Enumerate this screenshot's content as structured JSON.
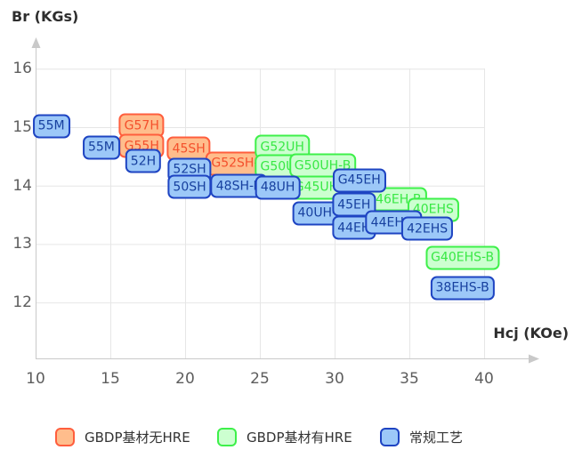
{
  "titles": {
    "y": "Br (KGs)",
    "x": "Hcj (KOe)"
  },
  "axes": {
    "x_ticks": [
      "10",
      "15",
      "20",
      "25",
      "30",
      "35",
      "40"
    ],
    "y_ticks": [
      "16",
      "15",
      "14",
      "13",
      "12"
    ]
  },
  "legend": [
    {
      "label": "GBDP基材无HRE",
      "category": "gbdp_no_hre"
    },
    {
      "label": "GBDP基材有HRE",
      "category": "gbdp_with_hre"
    },
    {
      "label": "常规工艺",
      "category": "conventional"
    }
  ],
  "colors": {
    "gbdp_no_hre": {
      "fill": "#ffbd8c",
      "border": "#ff5e3d",
      "text": "#f4502c"
    },
    "gbdp_with_hre": {
      "fill": "#ccffd0",
      "border": "#3ef04a",
      "text": "#39e845"
    },
    "conventional": {
      "fill": "#9cc8f8",
      "border": "#1e44c2",
      "text": "#17409f"
    }
  },
  "ui_colors": {
    "grid": "#e6e6e6",
    "axis": "#c9c9c9",
    "tick_text": "#5d5d5d",
    "title_text": "#2e2e2e",
    "legend_text": "#333333",
    "background": "#ffffff"
  },
  "chart_data": {
    "type": "scatter",
    "title": "",
    "xlabel": "Hcj (KOe)",
    "ylabel": "Br (KGs)",
    "xlim": [
      10,
      40
    ],
    "ylim": [
      12,
      16
    ],
    "x_tick_values": [
      10,
      15,
      20,
      25,
      30,
      35,
      40
    ],
    "y_tick_values": [
      16,
      15,
      14,
      13,
      12
    ],
    "grid": true,
    "legend_position": "bottom",
    "point_style": "rounded-label-box",
    "series": [
      {
        "name": "GBDP基材无HRE",
        "category": "gbdp_no_hre",
        "points": [
          {
            "label": "G57H",
            "hcj": 17.1,
            "br": 15.03
          },
          {
            "label": "G55H",
            "hcj": 17.1,
            "br": 14.68
          },
          {
            "label": "45SH",
            "hcj": 20.25,
            "br": 14.63
          },
          {
            "label": "G52SH-B",
            "hcj": 23.6,
            "br": 14.38
          }
        ]
      },
      {
        "name": "GBDP基材有HRE",
        "category": "gbdp_with_hre",
        "points": [
          {
            "label": "G52UH",
            "hcj": 26.5,
            "br": 14.66
          },
          {
            "label": "G50UH",
            "hcj": 26.5,
            "br": 14.33
          },
          {
            "label": "G50UH-B",
            "hcj": 29.2,
            "br": 14.34
          },
          {
            "label": "G45UH-B",
            "hcj": 29.2,
            "br": 13.97
          },
          {
            "label": "G46EH-B",
            "hcj": 33.95,
            "br": 13.76
          },
          {
            "label": "40EHS",
            "hcj": 36.6,
            "br": 13.59
          },
          {
            "label": "G40EHS-B",
            "hcj": 38.55,
            "br": 12.77
          }
        ]
      },
      {
        "name": "常规工艺",
        "category": "conventional",
        "points": [
          {
            "label": "55M",
            "hcj": 11.05,
            "br": 15.02
          },
          {
            "label": "55M",
            "hcj": 14.4,
            "br": 14.65
          },
          {
            "label": "52H",
            "hcj": 17.2,
            "br": 14.42
          },
          {
            "label": "52SH",
            "hcj": 20.3,
            "br": 14.27
          },
          {
            "label": "50SH",
            "hcj": 20.3,
            "br": 13.98
          },
          {
            "label": "48SH-B",
            "hcj": 23.6,
            "br": 13.99
          },
          {
            "label": "48UH",
            "hcj": 26.2,
            "br": 13.97
          },
          {
            "label": "40UH-B",
            "hcj": 29.1,
            "br": 13.53
          },
          {
            "label": "G45EH",
            "hcj": 31.65,
            "br": 14.09
          },
          {
            "label": "45EH",
            "hcj": 31.3,
            "br": 13.67
          },
          {
            "label": "44EH",
            "hcj": 31.3,
            "br": 13.28
          },
          {
            "label": "44EH-B",
            "hcj": 33.95,
            "br": 13.37
          },
          {
            "label": "42EHS",
            "hcj": 36.2,
            "br": 13.26
          },
          {
            "label": "38EHS-B",
            "hcj": 38.55,
            "br": 12.25
          }
        ]
      }
    ]
  }
}
